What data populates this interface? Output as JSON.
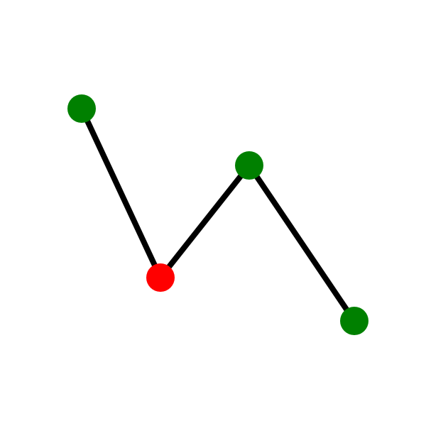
{
  "diagram": {
    "type": "polyline-with-nodes",
    "line_color": "#000000",
    "nodes": [
      {
        "id": "n1",
        "color": "#008000",
        "status": "green"
      },
      {
        "id": "n2",
        "color": "#ff0000",
        "status": "red"
      },
      {
        "id": "n3",
        "color": "#008000",
        "status": "green"
      },
      {
        "id": "n4",
        "color": "#008000",
        "status": "green"
      }
    ],
    "edges": [
      {
        "from": "n1",
        "to": "n2"
      },
      {
        "from": "n2",
        "to": "n3"
      },
      {
        "from": "n3",
        "to": "n4"
      }
    ]
  }
}
